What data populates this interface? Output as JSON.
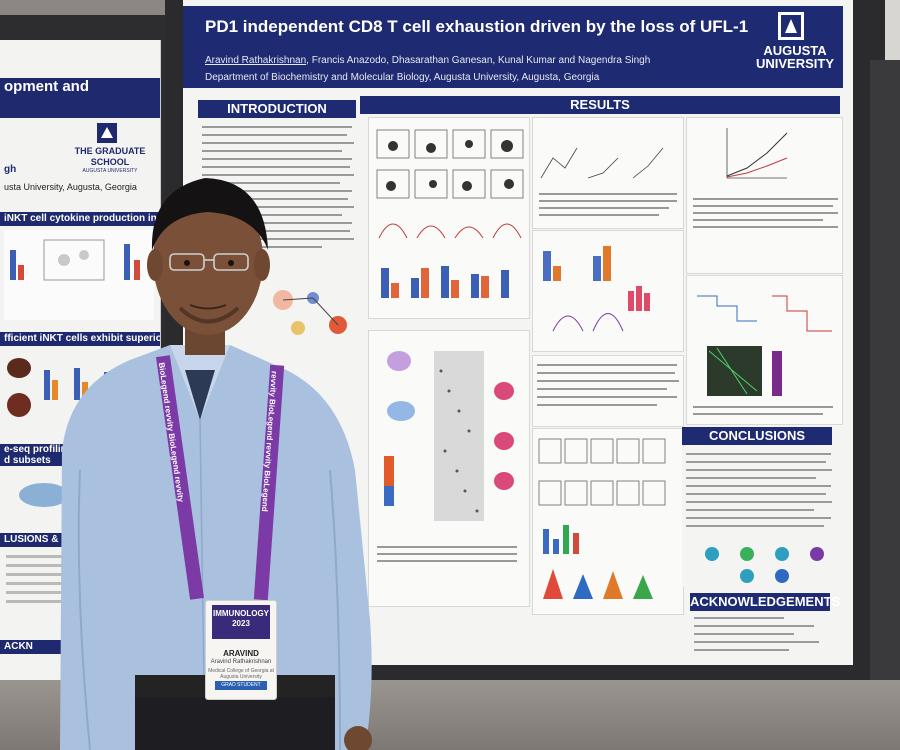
{
  "poster": {
    "title": "PD1 independent CD8 T cell exhaustion driven by the loss of UFL-1",
    "presenter": "Aravind Rathakrishnan",
    "coauthors": ", Francis Anazodo, Dhasarathan Ganesan, Kunal Kumar and Nagendra Singh",
    "department": "Department of Biochemistry and Molecular Biology, Augusta University, Augusta, Georgia",
    "university_logo": "AUGUSTA UNIVERSITY",
    "sections": {
      "introduction": "INTRODUCTION",
      "results": "RESULTS",
      "conclusions": "CONCLUSIONS",
      "acknowledgements": "ACKNOWLEDGEMENTS"
    }
  },
  "left_poster": {
    "title": "opment and",
    "school": "THE GRADUATE SCHOOL",
    "school_sub": "AUGUSTA UNIVERSITY",
    "affiliation": "gh",
    "affiliation2": "usta University, Augusta, Georgia",
    "section1": "iNKT cell cytokine production in the absence of",
    "section2": "fficient iNKT cells exhibit superior metastasis-",
    "section3": "e-seq profiling of iNKT\nd subsets",
    "section4": "LUSIONS & F",
    "section5": "ACKN"
  },
  "badge": {
    "event": "IMMUNOLOGY 2023",
    "name": "ARAVIND",
    "full_name": "Aravind Rathakrishnan",
    "org": "Medical College of Georgia at Augusta University",
    "role": "GRAD STUDENT"
  },
  "lanyard": {
    "left_text": "BioLegend  revvity  BioLegend  revvity",
    "right_text": "revvity  BioLegend  revvity  BioLegend"
  },
  "colors": {
    "poster_navy": "#1e2b73",
    "shirt_blue": "#a9c1de",
    "lanyard_purple": "#7b3aa6"
  }
}
